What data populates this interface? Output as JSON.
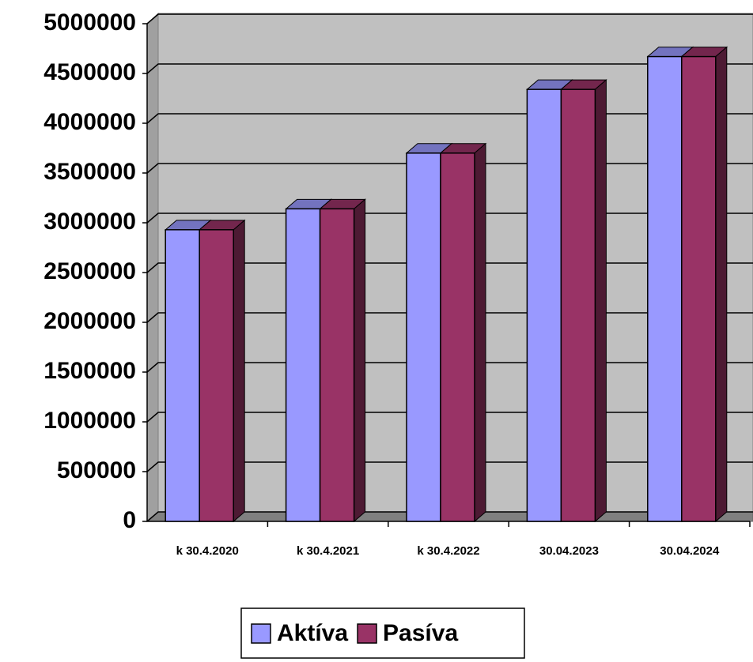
{
  "chart_data": {
    "type": "bar3d",
    "categories": [
      "k 30.4.2020",
      "k 30.4.2021",
      "k 30.4.2022",
      "30.04.2023",
      "30.04.2024"
    ],
    "series": [
      {
        "name": "Aktíva",
        "color": "#9999ff",
        "values": [
          2930000,
          3140000,
          3700000,
          4340000,
          4670000
        ]
      },
      {
        "name": "Pasíva",
        "color": "#993366",
        "values": [
          2930000,
          3140000,
          3700000,
          4340000,
          4670000
        ]
      }
    ],
    "ylim": [
      0,
      5000000
    ],
    "yticks": [
      0,
      500000,
      1000000,
      1500000,
      2000000,
      2500000,
      3000000,
      3500000,
      4000000,
      4500000,
      5000000
    ],
    "grid": true,
    "legend": "bottom"
  }
}
